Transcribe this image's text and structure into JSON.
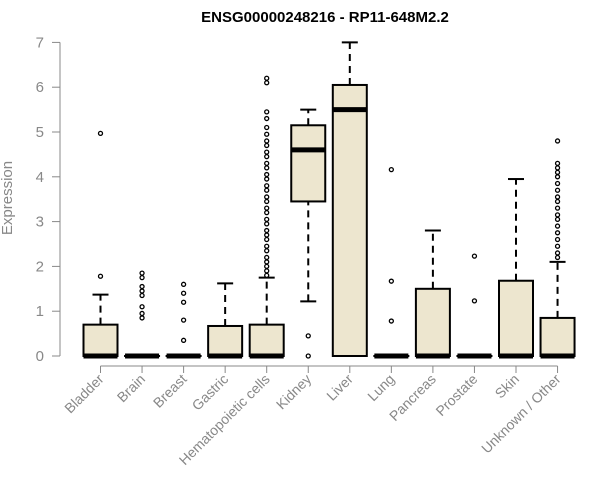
{
  "chart_data": {
    "type": "boxplot",
    "title": "ENSG00000248216 - RP11-648M2.2",
    "xlabel": "",
    "ylabel": "Expression",
    "ylim": [
      0,
      7
    ],
    "yticks": [
      0,
      1,
      2,
      3,
      4,
      5,
      6,
      7
    ],
    "box_fill": "#ede6cf",
    "categories": [
      "Bladder",
      "Brain",
      "Breast",
      "Gastric",
      "Hematopoietic cells",
      "Kidney",
      "Liver",
      "Lung",
      "Pancreas",
      "Prostate",
      "Skin",
      "Unknown / Other"
    ],
    "boxes": [
      {
        "q1": 0,
        "median": 0,
        "q3": 0.7,
        "whisker_low": 0,
        "whisker_high": 1.37,
        "outliers": [
          1.78,
          4.97
        ]
      },
      {
        "q1": 0,
        "median": 0,
        "q3": 0,
        "whisker_low": 0,
        "whisker_high": 0,
        "outliers": [
          0.85,
          0.95,
          1.1,
          1.35,
          1.45,
          1.55,
          1.75,
          1.85
        ]
      },
      {
        "q1": 0,
        "median": 0,
        "q3": 0,
        "whisker_low": 0,
        "whisker_high": 0,
        "outliers": [
          0.35,
          0.8,
          1.2,
          1.4,
          1.6
        ]
      },
      {
        "q1": 0,
        "median": 0,
        "q3": 0.67,
        "whisker_low": 0,
        "whisker_high": 1.62,
        "outliers": []
      },
      {
        "q1": 0,
        "median": 0,
        "q3": 0.7,
        "whisker_low": 0,
        "whisker_high": 1.75,
        "outliers": [
          1.8,
          1.9,
          2.0,
          2.1,
          2.2,
          2.35,
          2.45,
          2.6,
          2.7,
          2.8,
          2.95,
          3.05,
          3.2,
          3.3,
          3.45,
          3.55,
          3.7,
          3.8,
          3.95,
          4.05,
          4.2,
          4.3,
          4.45,
          4.55,
          4.7,
          4.8,
          4.95,
          5.1,
          5.3,
          5.45,
          6.1,
          6.2
        ]
      },
      {
        "q1": 3.45,
        "median": 4.6,
        "q3": 5.15,
        "whisker_low": 1.22,
        "whisker_high": 5.5,
        "outliers": [
          0.45,
          0
        ]
      },
      {
        "q1": 0,
        "median": 5.5,
        "q3": 6.05,
        "whisker_low": 0,
        "whisker_high": 7.0,
        "outliers": []
      },
      {
        "q1": 0,
        "median": 0,
        "q3": 0,
        "whisker_low": 0,
        "whisker_high": 0,
        "outliers": [
          0.78,
          1.67,
          4.16
        ]
      },
      {
        "q1": 0,
        "median": 0,
        "q3": 1.5,
        "whisker_low": 0,
        "whisker_high": 2.8,
        "outliers": []
      },
      {
        "q1": 0,
        "median": 0,
        "q3": 0,
        "whisker_low": 0,
        "whisker_high": 0,
        "outliers": [
          1.23,
          2.23
        ]
      },
      {
        "q1": 0,
        "median": 0,
        "q3": 1.68,
        "whisker_low": 0,
        "whisker_high": 3.95,
        "outliers": []
      },
      {
        "q1": 0,
        "median": 0,
        "q3": 0.85,
        "whisker_low": 0,
        "whisker_high": 2.1,
        "outliers": [
          2.2,
          2.3,
          2.45,
          2.6,
          2.75,
          2.9,
          3.05,
          3.15,
          3.3,
          3.45,
          3.55,
          3.7,
          3.85,
          4.0,
          4.1,
          4.2,
          4.3,
          4.8
        ]
      }
    ]
  }
}
